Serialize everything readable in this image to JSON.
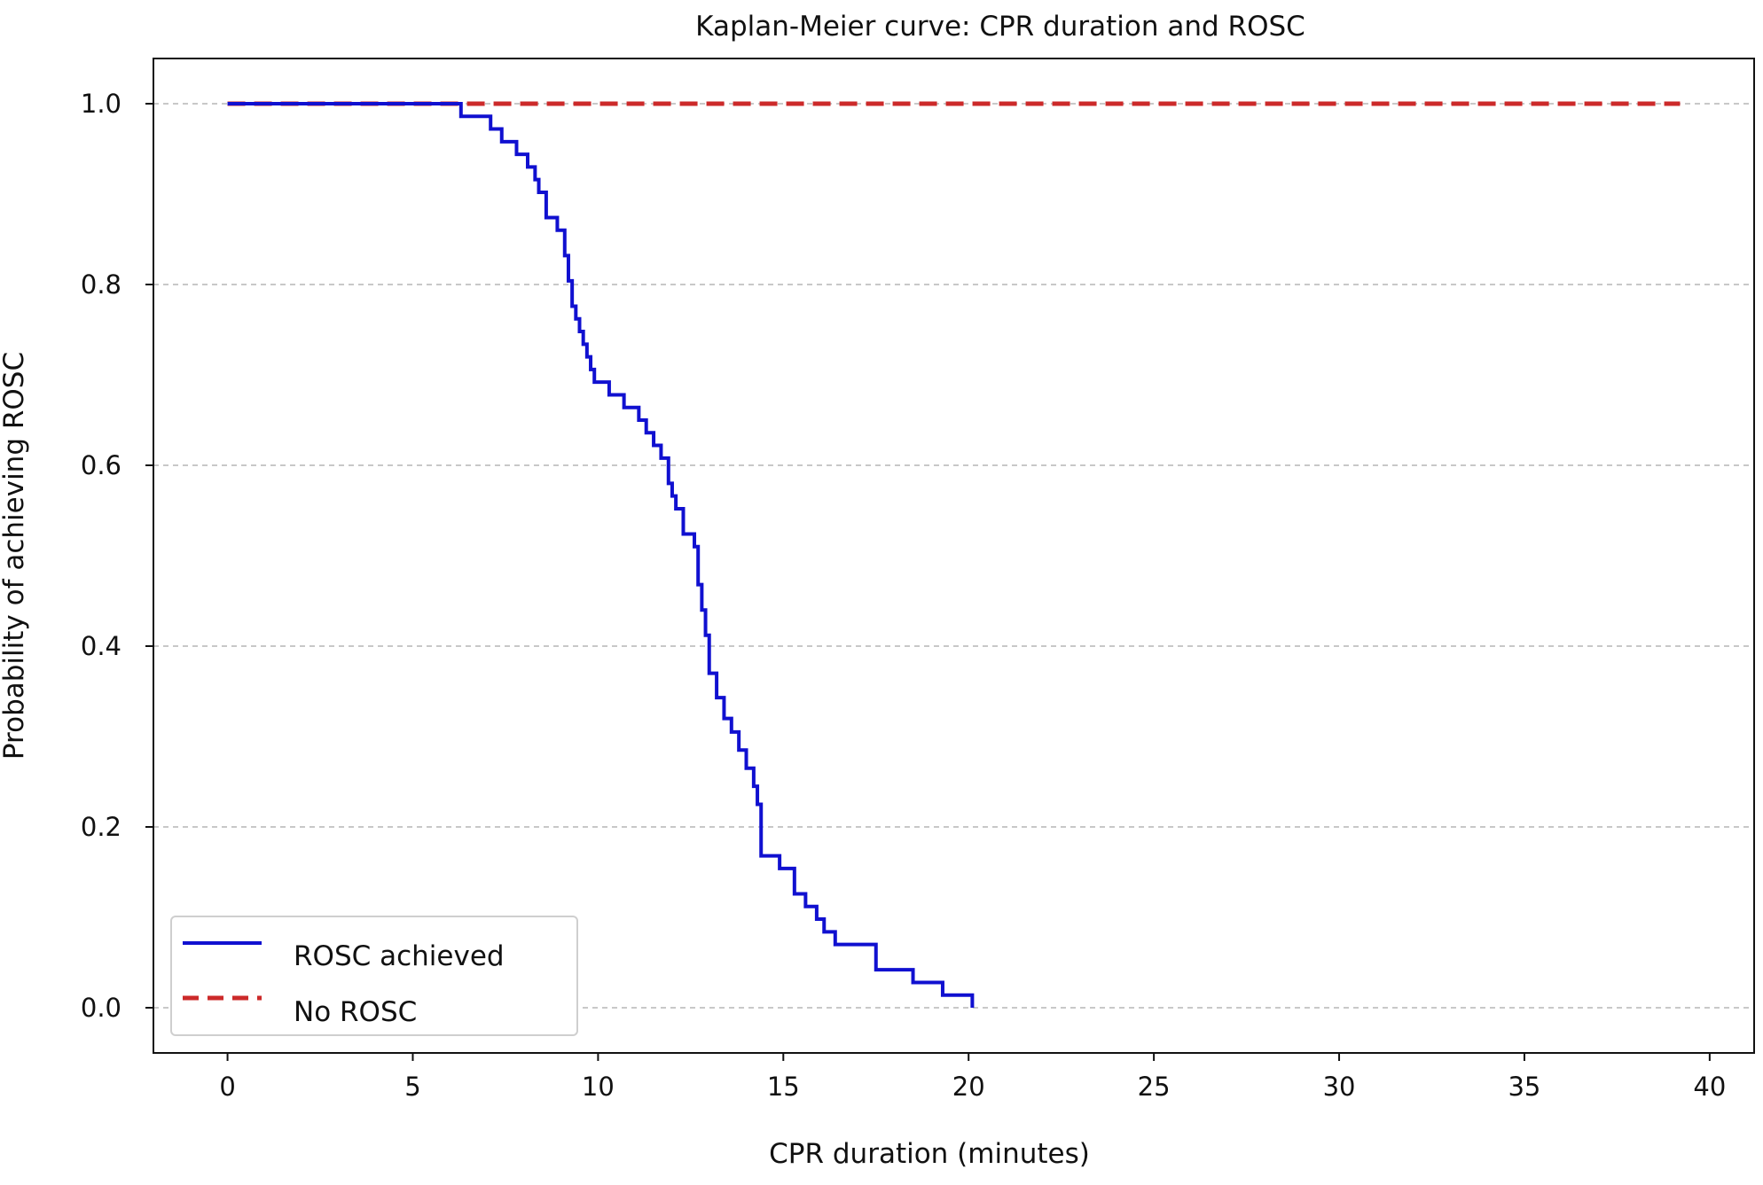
{
  "chart_data": {
    "type": "line",
    "title": "Kaplan-Meier curve: CPR duration and ROSC",
    "xlabel": "CPR duration (minutes)",
    "ylabel": "Probability of achieving ROSC",
    "xlim": [
      -2,
      41.2
    ],
    "ylim": [
      -0.05,
      1.05
    ],
    "xticks": [
      0,
      5,
      10,
      15,
      20,
      25,
      30,
      35,
      40
    ],
    "yticks": [
      0.0,
      0.2,
      0.4,
      0.6,
      0.8,
      1.0
    ],
    "xtick_labels": [
      "0",
      "5",
      "10",
      "15",
      "20",
      "25",
      "30",
      "35",
      "40"
    ],
    "ytick_labels": [
      "0.0",
      "0.2",
      "0.4",
      "0.6",
      "0.8",
      "1.0"
    ],
    "grid": "horizontal dashed",
    "legend_position": "lower-left",
    "series": [
      {
        "name": "ROSC achieved",
        "color": "#1010d0",
        "style": "solid step",
        "x": [
          0,
          6.3,
          7.1,
          7.4,
          7.8,
          8.1,
          8.3,
          8.4,
          8.6,
          8.9,
          9.1,
          9.2,
          9.3,
          9.4,
          9.5,
          9.6,
          9.7,
          9.8,
          9.9,
          10.3,
          10.7,
          11.1,
          11.3,
          11.5,
          11.7,
          11.9,
          12.0,
          12.1,
          12.3,
          12.6,
          12.7,
          12.8,
          12.9,
          13.0,
          13.2,
          13.4,
          13.6,
          13.8,
          14.0,
          14.2,
          14.3,
          14.4,
          14.9,
          15.3,
          15.6,
          15.9,
          16.1,
          16.4,
          17.5,
          18.5,
          19.3,
          20.1
        ],
        "y": [
          1.0,
          0.986,
          0.972,
          0.958,
          0.944,
          0.93,
          0.916,
          0.902,
          0.874,
          0.86,
          0.832,
          0.804,
          0.776,
          0.762,
          0.748,
          0.734,
          0.72,
          0.706,
          0.692,
          0.678,
          0.664,
          0.65,
          0.636,
          0.622,
          0.608,
          0.58,
          0.566,
          0.552,
          0.524,
          0.51,
          0.468,
          0.44,
          0.412,
          0.37,
          0.343,
          0.32,
          0.305,
          0.285,
          0.265,
          0.245,
          0.225,
          0.168,
          0.154,
          0.126,
          0.112,
          0.098,
          0.084,
          0.07,
          0.042,
          0.028,
          0.014,
          0.0
        ]
      },
      {
        "name": "No ROSC",
        "color": "#cc2a2a",
        "style": "dashed",
        "x": [
          0,
          39.2
        ],
        "y": [
          1.0,
          1.0
        ]
      }
    ]
  }
}
